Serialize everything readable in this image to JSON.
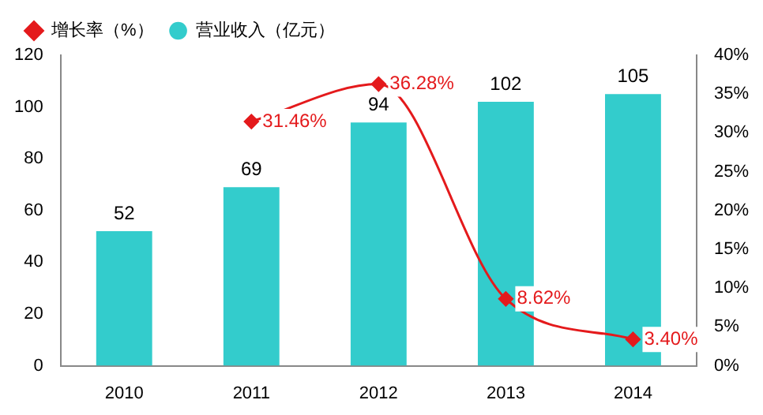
{
  "chart_data": {
    "type": "bar",
    "categories": [
      "2010",
      "2011",
      "2012",
      "2013",
      "2014"
    ],
    "series": [
      {
        "name": "营业收入（亿元）",
        "color": "#33cccc",
        "values": [
          52,
          69,
          94,
          102,
          105
        ],
        "value_labels": [
          "52",
          "69",
          "94",
          "102",
          "105"
        ]
      },
      {
        "name": "增长率（%）",
        "type": "line",
        "axis": "y2",
        "color": "#e41a1c",
        "values": [
          null,
          31.46,
          36.28,
          8.62,
          3.4
        ],
        "value_labels": [
          null,
          "31.46%",
          "36.28%",
          "8.62%",
          "3.40%"
        ]
      }
    ],
    "ylim": [
      0,
      120
    ],
    "yticks": [
      0,
      20,
      40,
      60,
      80,
      100,
      120
    ],
    "y2lim": [
      0,
      40
    ],
    "y2ticks": [
      {
        "value": 0,
        "label": "0%"
      },
      {
        "value": 5,
        "label": "5%"
      },
      {
        "value": 10,
        "label": "10%"
      },
      {
        "value": 15,
        "label": "15%"
      },
      {
        "value": 20,
        "label": "20%"
      },
      {
        "value": 25,
        "label": "25%"
      },
      {
        "value": 30,
        "label": "30%"
      },
      {
        "value": 35,
        "label": "35%"
      },
      {
        "value": 40,
        "label": "40%"
      }
    ],
    "legend": "top left",
    "marker": "diamond",
    "grid": false
  }
}
